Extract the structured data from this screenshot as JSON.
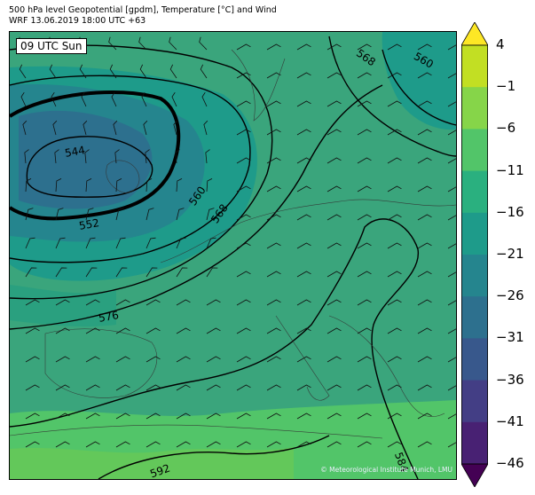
{
  "title": {
    "line1": "500 hPa level Geopotential [gpdm], Temperature [°C] and Wind",
    "line2": "WRF 13.06.2019 18:00 UTC +63"
  },
  "map": {
    "time_label": "09 UTC Sun",
    "credit": "© Meteorological Institute Munich, LMU",
    "contour_labels": [
      "544",
      "552",
      "560",
      "568",
      "568",
      "560",
      "576",
      "584",
      "592"
    ]
  },
  "colorbar": {
    "tick_labels": [
      "4",
      "−1",
      "−6",
      "−11",
      "−16",
      "−21",
      "−26",
      "−31",
      "−36",
      "−41",
      "−46"
    ],
    "colors": [
      "#fde725",
      "#c2df23",
      "#86d549",
      "#52c569",
      "#2ab07f",
      "#1e9b8a",
      "#25858e",
      "#2d708e",
      "#38588c",
      "#433e85",
      "#482173",
      "#440154"
    ]
  }
}
